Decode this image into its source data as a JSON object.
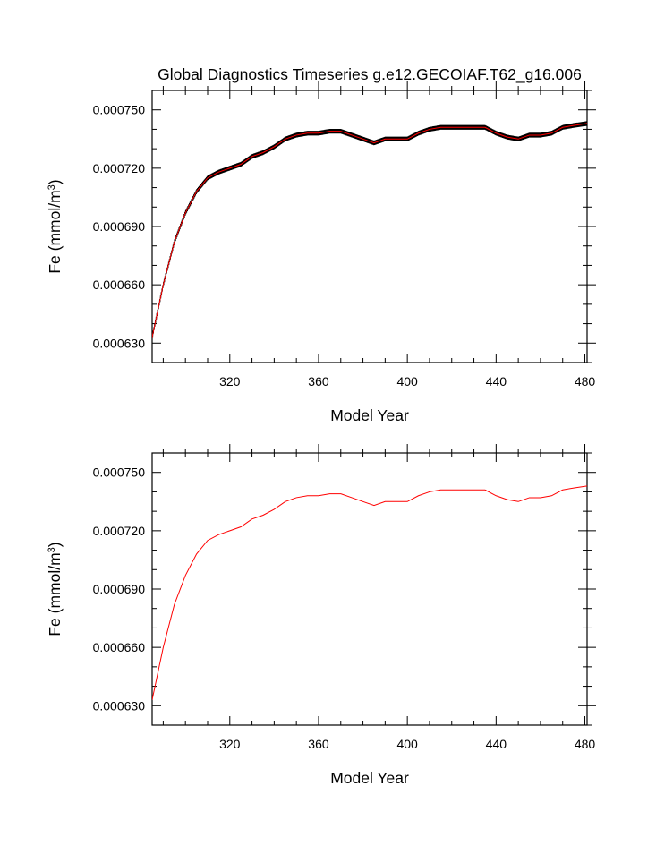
{
  "title": "Global Diagnostics Timeseries g.e12.GECOIAF.T62_g16.006",
  "chart_data": [
    {
      "type": "line",
      "xlabel": "Model Year",
      "ylabel": "Fe (mmol/m",
      "ylabel_sup": "3",
      "ylabel_close": ")",
      "xlim": [
        285,
        481
      ],
      "ylim": [
        0.00062,
        0.00076
      ],
      "xticks": [
        320,
        360,
        400,
        440,
        480
      ],
      "xtick_labels": [
        "320",
        "360",
        "400",
        "440",
        "480"
      ],
      "yticks": [
        0.00063,
        0.00066,
        0.00069,
        0.00072,
        0.00075
      ],
      "ytick_labels": [
        "0.000630",
        "0.000660",
        "0.000690",
        "0.000720",
        "0.000750"
      ],
      "grid": false,
      "series_color": "#ff0000",
      "overlay_color": "#000000",
      "overlay_style": "monthly oscillation",
      "x": [
        285,
        290,
        295,
        300,
        305,
        310,
        315,
        320,
        325,
        330,
        335,
        340,
        345,
        350,
        355,
        360,
        365,
        370,
        375,
        380,
        385,
        390,
        395,
        400,
        405,
        410,
        415,
        420,
        425,
        430,
        435,
        440,
        445,
        450,
        455,
        460,
        465,
        470,
        475,
        481
      ],
      "y": [
        0.000633,
        0.00066,
        0.000682,
        0.000697,
        0.000708,
        0.000715,
        0.000718,
        0.00072,
        0.000722,
        0.000726,
        0.000728,
        0.000731,
        0.000735,
        0.000737,
        0.000738,
        0.000738,
        0.000739,
        0.000739,
        0.000737,
        0.000735,
        0.000733,
        0.000735,
        0.000735,
        0.000735,
        0.000738,
        0.00074,
        0.000741,
        0.000741,
        0.000741,
        0.000741,
        0.000741,
        0.000738,
        0.000736,
        0.000735,
        0.000737,
        0.000737,
        0.000738,
        0.000741,
        0.000742,
        0.000743
      ]
    },
    {
      "type": "line",
      "xlabel": "Model Year",
      "ylabel": "Fe (mmol/m",
      "ylabel_sup": "3",
      "ylabel_close": ")",
      "xlim": [
        285,
        481
      ],
      "ylim": [
        0.00062,
        0.00076
      ],
      "xticks": [
        320,
        360,
        400,
        440,
        480
      ],
      "xtick_labels": [
        "320",
        "360",
        "400",
        "440",
        "480"
      ],
      "yticks": [
        0.00063,
        0.00066,
        0.00069,
        0.00072,
        0.00075
      ],
      "ytick_labels": [
        "0.000630",
        "0.000660",
        "0.000690",
        "0.000720",
        "0.000750"
      ],
      "grid": false,
      "series_color": "#ff0000",
      "x": [
        285,
        290,
        295,
        300,
        305,
        310,
        315,
        320,
        325,
        330,
        335,
        340,
        345,
        350,
        355,
        360,
        365,
        370,
        375,
        380,
        385,
        390,
        395,
        400,
        405,
        410,
        415,
        420,
        425,
        430,
        435,
        440,
        445,
        450,
        455,
        460,
        465,
        470,
        475,
        481
      ],
      "y": [
        0.000633,
        0.00066,
        0.000682,
        0.000697,
        0.000708,
        0.000715,
        0.000718,
        0.00072,
        0.000722,
        0.000726,
        0.000728,
        0.000731,
        0.000735,
        0.000737,
        0.000738,
        0.000738,
        0.000739,
        0.000739,
        0.000737,
        0.000735,
        0.000733,
        0.000735,
        0.000735,
        0.000735,
        0.000738,
        0.00074,
        0.000741,
        0.000741,
        0.000741,
        0.000741,
        0.000741,
        0.000738,
        0.000736,
        0.000735,
        0.000737,
        0.000737,
        0.000738,
        0.000741,
        0.000742,
        0.000743
      ]
    }
  ]
}
